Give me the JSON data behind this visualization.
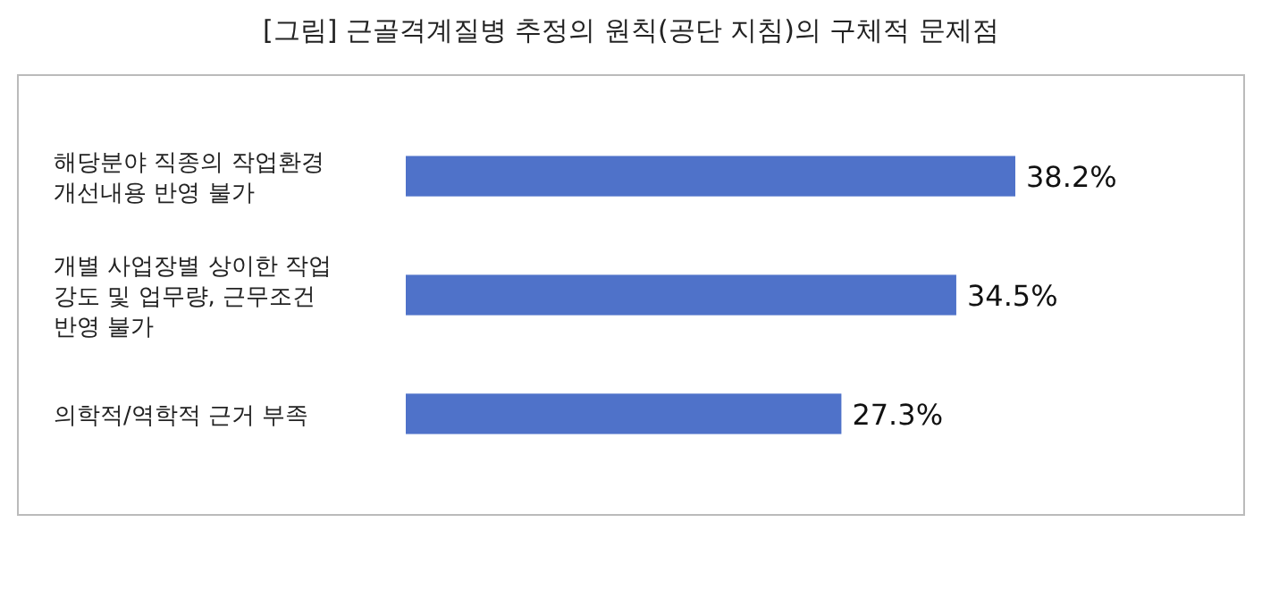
{
  "chart_data": {
    "type": "bar",
    "orientation": "horizontal",
    "title": "[그림] 근골격계질병 추정의 원칙(공단 지침)의 구체적 문제점",
    "categories": [
      "해당분야 직종의 작업환경 개선내용 반영 불가",
      "개별 사업장별 상이한 작업강도 및 업무량, 근무조건 반영 불가",
      "의학적/역학적 근거 부족"
    ],
    "values": [
      38.2,
      34.5,
      27.3
    ],
    "value_labels": [
      "38.2%",
      "34.5%",
      "27.3%"
    ],
    "color": "#4f72c9"
  }
}
